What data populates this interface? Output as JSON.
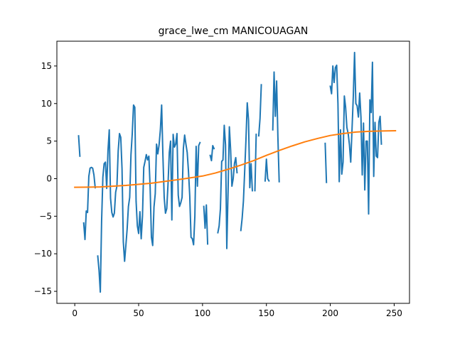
{
  "chart_data": {
    "type": "line",
    "title": "grace_lwe_cm MANICOUAGAN",
    "xlabel": "",
    "ylabel": "",
    "xlim": [
      -14,
      262
    ],
    "ylim": [
      -16.6,
      18.3
    ],
    "x_ticks": [
      0,
      50,
      100,
      150,
      200,
      250
    ],
    "y_ticks": [
      -15,
      -10,
      -5,
      0,
      5,
      10,
      15
    ],
    "grid": false,
    "legend": "none",
    "series": [
      {
        "color": "#1f77b4",
        "points": [
          [
            3,
            5.7
          ],
          [
            4,
            3.0
          ],
          null,
          [
            7,
            -5.9
          ],
          [
            8,
            -8.1
          ],
          [
            9,
            -4.3
          ],
          [
            10,
            -4.5
          ],
          [
            11,
            0.3
          ],
          [
            12,
            1.4
          ],
          [
            13,
            1.5
          ],
          [
            14,
            1.4
          ],
          [
            15,
            0.5
          ],
          [
            16,
            -1.2
          ],
          null,
          [
            18,
            -10.3
          ],
          [
            19,
            -12.2
          ],
          [
            20,
            -15.1
          ],
          [
            21,
            -5.7
          ],
          [
            22,
            0.2
          ],
          [
            23,
            2.0
          ],
          [
            24,
            2.2
          ],
          [
            25,
            -1.3
          ],
          [
            26,
            3.7
          ],
          [
            27,
            6.5
          ],
          [
            28,
            -2.6
          ],
          [
            29,
            -4.5
          ],
          [
            30,
            -5.1
          ],
          [
            31,
            -4.6
          ],
          [
            32,
            -1.8
          ],
          [
            33,
            -1.0
          ],
          [
            34,
            3.7
          ],
          [
            35,
            6.0
          ],
          [
            36,
            5.5
          ],
          [
            37,
            1.3
          ],
          [
            38,
            -8.4
          ],
          [
            39,
            -11.0
          ],
          [
            40,
            -8.9
          ],
          [
            41,
            -6.7
          ],
          [
            42,
            -3.7
          ],
          [
            43,
            -2.5
          ],
          [
            44,
            3.2
          ],
          [
            45,
            6.0
          ],
          [
            46,
            9.8
          ],
          [
            47,
            9.5
          ],
          [
            48,
            -3.0
          ],
          [
            49,
            -6.3
          ],
          [
            50,
            -7.3
          ],
          [
            51,
            -4.4
          ],
          [
            52,
            -8.0
          ],
          [
            53,
            -5.0
          ],
          [
            54,
            1.5
          ],
          [
            55,
            2.3
          ],
          [
            56,
            3.2
          ],
          [
            57,
            2.5
          ],
          [
            58,
            3.0
          ],
          [
            59,
            -1.2
          ],
          [
            60,
            -7.8
          ],
          [
            61,
            -8.9
          ],
          [
            62,
            -3.8
          ],
          [
            63,
            -2.0
          ],
          [
            64,
            4.6
          ],
          [
            65,
            3.3
          ],
          [
            66,
            4.5
          ],
          [
            67,
            6.5
          ],
          [
            68,
            9.8
          ],
          [
            69,
            3.0
          ],
          [
            70,
            -2.5
          ],
          [
            71,
            -4.6
          ],
          [
            72,
            -4.0
          ],
          [
            73,
            -0.7
          ],
          [
            74,
            3.5
          ],
          [
            75,
            5.0
          ],
          [
            76,
            -5.5
          ],
          [
            77,
            5.9
          ],
          [
            78,
            4.2
          ],
          [
            79,
            4.6
          ],
          [
            80,
            6.0
          ],
          [
            81,
            -2.2
          ],
          [
            82,
            -3.7
          ],
          [
            83,
            -3.2
          ],
          [
            84,
            -2.5
          ],
          [
            85,
            4.0
          ],
          [
            86,
            5.8
          ],
          [
            87,
            4.6
          ],
          [
            88,
            3.5
          ],
          [
            89,
            1.0
          ],
          [
            90,
            -2.3
          ],
          [
            91,
            -7.8
          ],
          [
            92,
            -8.0
          ],
          [
            93,
            -8.8
          ],
          [
            94,
            -5.0
          ],
          [
            95,
            4.3
          ],
          [
            96,
            -1.0
          ],
          [
            97,
            4.4
          ],
          [
            98,
            4.8
          ],
          null,
          [
            101,
            -3.7
          ],
          [
            102,
            -6.6
          ],
          [
            103,
            -3.5
          ],
          [
            104,
            -8.7
          ],
          null,
          [
            106,
            3.1
          ],
          [
            107,
            2.4
          ],
          [
            108,
            4.4
          ],
          [
            109,
            4.0
          ],
          null,
          [
            112,
            -7.2
          ],
          [
            113,
            -6.3
          ],
          [
            114,
            -4.0
          ],
          [
            115,
            2.3
          ],
          [
            116,
            2.5
          ],
          [
            117,
            7.1
          ],
          [
            118,
            4.5
          ],
          [
            119,
            -9.3
          ],
          [
            120,
            -1.6
          ],
          [
            121,
            6.9
          ],
          [
            122,
            3.8
          ],
          [
            123,
            -1.0
          ],
          [
            124,
            0.0
          ],
          [
            125,
            2.0
          ],
          [
            126,
            2.8
          ],
          [
            127,
            0.8
          ],
          null,
          [
            130,
            -6.9
          ],
          [
            131,
            -5.3
          ],
          [
            132,
            -3.0
          ],
          [
            133,
            1.0
          ],
          [
            134,
            5.2
          ],
          [
            135,
            10.1
          ],
          [
            136,
            7.8
          ],
          [
            137,
            -1.2
          ],
          [
            138,
            2.0
          ],
          [
            139,
            -1.6
          ],
          null,
          [
            141,
            -1.6
          ],
          [
            142,
            5.9
          ],
          null,
          [
            144,
            5.7
          ],
          [
            145,
            8.0
          ],
          [
            146,
            12.5
          ],
          null,
          [
            149,
            -0.3
          ],
          [
            150,
            2.6
          ],
          [
            151,
            0.0
          ],
          [
            152,
            -0.3
          ],
          null,
          [
            155,
            6.5
          ],
          [
            156,
            14.2
          ],
          [
            157,
            8.3
          ],
          [
            158,
            13.0
          ],
          [
            159,
            5.5
          ],
          [
            160,
            -0.4
          ],
          null,
          [
            196,
            4.7
          ],
          [
            197,
            -0.5
          ],
          null,
          [
            200,
            12.3
          ],
          [
            201,
            11.3
          ],
          [
            202,
            15.0
          ],
          [
            203,
            12.8
          ],
          [
            204,
            14.8
          ],
          [
            205,
            15.1
          ],
          [
            206,
            10.0
          ],
          [
            207,
            -0.4
          ],
          [
            208,
            6.5
          ],
          [
            209,
            0.6
          ],
          [
            210,
            2.2
          ],
          [
            211,
            11.0
          ],
          [
            212,
            9.5
          ],
          [
            213,
            6.8
          ],
          [
            214,
            6.0
          ],
          [
            215,
            4.5
          ],
          [
            216,
            2.2
          ],
          [
            217,
            6.5
          ],
          [
            218,
            10.9
          ],
          [
            219,
            16.8
          ],
          [
            220,
            10.0
          ],
          [
            221,
            9.7
          ],
          [
            222,
            8.2
          ],
          [
            223,
            11.4
          ],
          [
            224,
            8.2
          ],
          [
            225,
            0.5
          ],
          [
            226,
            7.4
          ],
          [
            227,
            -1.5
          ],
          [
            228,
            5.0
          ],
          [
            229,
            5.0
          ],
          [
            230,
            -4.7
          ],
          [
            231,
            10.5
          ],
          [
            232,
            8.8
          ],
          [
            233,
            15.5
          ],
          [
            234,
            0.3
          ],
          [
            235,
            7.5
          ],
          [
            236,
            3.0
          ],
          [
            237,
            2.8
          ],
          [
            238,
            7.5
          ],
          [
            239,
            8.3
          ],
          [
            240,
            4.6
          ]
        ]
      },
      {
        "color": "#ff7f0e",
        "points": [
          [
            0,
            -1.15
          ],
          [
            20,
            -1.1
          ],
          [
            40,
            -0.9
          ],
          [
            60,
            -0.6
          ],
          [
            80,
            -0.15
          ],
          [
            100,
            0.35
          ],
          [
            110,
            0.75
          ],
          [
            120,
            1.25
          ],
          [
            130,
            1.8
          ],
          [
            140,
            2.4
          ],
          [
            150,
            3.1
          ],
          [
            160,
            3.75
          ],
          [
            170,
            4.35
          ],
          [
            180,
            4.9
          ],
          [
            190,
            5.35
          ],
          [
            200,
            5.75
          ],
          [
            210,
            6.0
          ],
          [
            220,
            6.2
          ],
          [
            230,
            6.3
          ],
          [
            240,
            6.35
          ],
          [
            251,
            6.38
          ]
        ]
      }
    ]
  }
}
